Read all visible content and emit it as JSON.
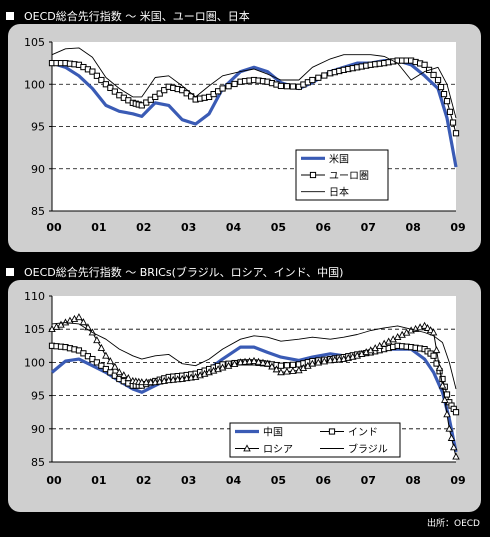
{
  "charts": [
    {
      "title": "OECD総合先行指数 〜 米国、ユーロ圏、日本",
      "chart_data": {
        "type": "line",
        "title": "OECD総合先行指数 〜 米国、ユーロ圏、日本",
        "xlabel": "",
        "ylabel": "",
        "xlim": [
          2000,
          2009
        ],
        "ylim": [
          85,
          105
        ],
        "yticks": [
          85,
          90,
          95,
          100,
          105
        ],
        "xtick_labels": [
          "00",
          "01",
          "02",
          "03",
          "04",
          "05",
          "06",
          "07",
          "08",
          "09"
        ],
        "grid": "dashed horizontal at 90, 95, 100",
        "legend_position": "inside-right",
        "series": [
          {
            "name": "米国",
            "style": "thick-blue",
            "color": "#3a5bb5",
            "x": [
              2000,
              2000.3,
              2000.6,
              2000.9,
              2001.2,
              2001.5,
              2001.8,
              2002,
              2002.3,
              2002.6,
              2002.9,
              2003.2,
              2003.5,
              2003.8,
              2004.2,
              2004.5,
              2004.8,
              2005.1,
              2005.5,
              2005.8,
              2006.2,
              2006.5,
              2006.8,
              2007.1,
              2007.4,
              2007.7,
              2008,
              2008.3,
              2008.6,
              2008.8,
              2009
            ],
            "y": [
              102.5,
              102,
              101,
              99.5,
              97.5,
              96.8,
              96.5,
              96.2,
              97.8,
              97.5,
              95.8,
              95.3,
              96.5,
              99.5,
              101.5,
              102,
              101.5,
              100.2,
              99.5,
              100.2,
              101.5,
              102,
              102.5,
              102.5,
              102.8,
              102.8,
              102.3,
              101,
              99.5,
              96,
              90.2
            ]
          },
          {
            "name": "ユーロ圏",
            "style": "square-markers",
            "color": "#000000",
            "x": [
              2000,
              2000.3,
              2000.6,
              2000.9,
              2001.2,
              2001.5,
              2001.8,
              2002,
              2002.3,
              2002.6,
              2002.9,
              2003.2,
              2003.5,
              2003.8,
              2004.2,
              2004.5,
              2004.8,
              2005.1,
              2005.5,
              2005.8,
              2006.2,
              2006.5,
              2006.8,
              2007.1,
              2007.4,
              2007.7,
              2008,
              2008.3,
              2008.6,
              2008.8,
              2009
            ],
            "y": [
              102.5,
              102.5,
              102.3,
              101.5,
              100,
              98.7,
              97.8,
              97.5,
              98.5,
              99.7,
              99.3,
              98.2,
              98.5,
              99.5,
              100.3,
              100.5,
              100.3,
              99.8,
              99.7,
              100.5,
              101.3,
              101.7,
              102,
              102.3,
              102.5,
              102.8,
              102.8,
              102.3,
              100.5,
              98,
              94.2
            ]
          },
          {
            "name": "日本",
            "style": "thin-line",
            "color": "#000000",
            "x": [
              2000,
              2000.3,
              2000.6,
              2000.9,
              2001.2,
              2001.5,
              2001.8,
              2002,
              2002.3,
              2002.6,
              2002.9,
              2003.2,
              2003.5,
              2003.8,
              2004.2,
              2004.5,
              2004.8,
              2005.1,
              2005.5,
              2005.8,
              2006.2,
              2006.5,
              2006.8,
              2007.1,
              2007.4,
              2007.7,
              2008,
              2008.3,
              2008.6,
              2008.8,
              2009
            ],
            "y": [
              103.5,
              104.2,
              104.3,
              103.2,
              100.8,
              99.5,
              98.5,
              98.5,
              100.8,
              101,
              99.8,
              98.5,
              99.8,
              101,
              101.5,
              101.8,
              101.2,
              100.5,
              100.5,
              102,
              103,
              103.5,
              103.5,
              103.5,
              103.3,
              102.5,
              100.5,
              101.5,
              102,
              100,
              96
            ]
          }
        ]
      }
    },
    {
      "title": "OECD総合先行指数 〜 BRICs(ブラジル、ロシア、インド、中国)",
      "chart_data": {
        "type": "line",
        "title": "OECD総合先行指数 〜 BRICs(ブラジル、ロシア、インド、中国)",
        "xlabel": "",
        "ylabel": "",
        "xlim": [
          2000,
          2009
        ],
        "ylim": [
          85,
          110
        ],
        "yticks": [
          85,
          90,
          95,
          100,
          105,
          110
        ],
        "xtick_labels": [
          "00",
          "01",
          "02",
          "03",
          "04",
          "05",
          "06",
          "07",
          "08",
          "09"
        ],
        "grid": "dashed horizontal at 90, 95, 100, 105",
        "legend_position": "bottom-left",
        "series": [
          {
            "name": "中国",
            "style": "thick-blue",
            "color": "#3a5bb5",
            "x": [
              2000,
              2000.3,
              2000.6,
              2000.9,
              2001.2,
              2001.5,
              2001.8,
              2002,
              2002.3,
              2002.6,
              2002.9,
              2003.2,
              2003.5,
              2003.8,
              2004.2,
              2004.5,
              2004.8,
              2005.1,
              2005.5,
              2005.8,
              2006.2,
              2006.5,
              2006.8,
              2007.1,
              2007.4,
              2007.7,
              2008,
              2008.3,
              2008.5,
              2008.7,
              2008.85,
              2009
            ],
            "y": [
              98.5,
              100.2,
              100.5,
              99.5,
              98.5,
              97.2,
              96,
              95.5,
              96.5,
              97.5,
              98,
              98,
              99,
              100.5,
              102.3,
              102.3,
              101.5,
              100.8,
              100.3,
              100.8,
              101.3,
              101,
              101,
              101.5,
              102,
              102,
              102,
              100.5,
              98.5,
              95.5,
              91.5,
              86.5
            ]
          },
          {
            "name": "インド",
            "style": "square-markers",
            "color": "#000000",
            "x": [
              2000,
              2000.3,
              2000.6,
              2000.9,
              2001.2,
              2001.5,
              2001.8,
              2002,
              2002.3,
              2002.6,
              2002.9,
              2003.2,
              2003.5,
              2003.8,
              2004.2,
              2004.5,
              2004.8,
              2005.1,
              2005.5,
              2005.8,
              2006.2,
              2006.5,
              2006.8,
              2007.1,
              2007.4,
              2007.7,
              2008,
              2008.3,
              2008.5,
              2008.7,
              2008.85,
              2009
            ],
            "y": [
              102.5,
              102.3,
              101.8,
              100.5,
              99,
              97.5,
              96.5,
              96.5,
              97.2,
              97.8,
              98,
              98.3,
              99,
              99.7,
              100,
              100,
              99.8,
              99.5,
              99.7,
              100.2,
              100.5,
              100.8,
              101.2,
              101.5,
              102,
              102.5,
              102.3,
              102,
              101,
              97.5,
              94,
              92.5
            ]
          },
          {
            "name": "ロシア",
            "style": "triangle-markers",
            "color": "#000000",
            "x": [
              2000,
              2000.3,
              2000.6,
              2000.9,
              2001.2,
              2001.5,
              2001.8,
              2002,
              2002.3,
              2002.6,
              2002.9,
              2003.2,
              2003.5,
              2003.8,
              2004.2,
              2004.5,
              2004.8,
              2005.1,
              2005.5,
              2005.8,
              2006.2,
              2006.5,
              2006.8,
              2007.1,
              2007.4,
              2007.7,
              2008,
              2008.3,
              2008.5,
              2008.7,
              2008.85,
              2009
            ],
            "y": [
              105,
              106,
              106.8,
              104.5,
              101,
              98.5,
              97.2,
              97,
              97,
              97.3,
              97.5,
              97.8,
              98.5,
              99.2,
              100,
              100.2,
              99.8,
              98.5,
              98.8,
              99.8,
              100.3,
              100.5,
              101,
              101.8,
              102.8,
              103.8,
              104.8,
              105.5,
              104.5,
              96.5,
              90,
              85.8
            ]
          },
          {
            "name": "ブラジル",
            "style": "thin-line",
            "color": "#000000",
            "x": [
              2000,
              2000.3,
              2000.6,
              2000.9,
              2001.2,
              2001.5,
              2001.8,
              2002,
              2002.3,
              2002.6,
              2002.9,
              2003.2,
              2003.5,
              2003.8,
              2004.2,
              2004.5,
              2004.8,
              2005.1,
              2005.5,
              2005.8,
              2006.2,
              2006.5,
              2006.8,
              2007.1,
              2007.4,
              2007.7,
              2008,
              2008.3,
              2008.5,
              2008.7,
              2008.85,
              2009
            ],
            "y": [
              105.8,
              106,
              105.8,
              104.5,
              103.5,
              102,
              101,
              100.5,
              101,
              101.2,
              99.8,
              99.5,
              100.5,
              102,
              103.5,
              104,
              103.8,
              103.2,
              103.5,
              103.8,
              103.5,
              103.8,
              104.2,
              104.8,
              105.2,
              105.5,
              105,
              104.5,
              104,
              103,
              100,
              96
            ]
          }
        ]
      }
    }
  ],
  "source_note": "出所：OECD"
}
